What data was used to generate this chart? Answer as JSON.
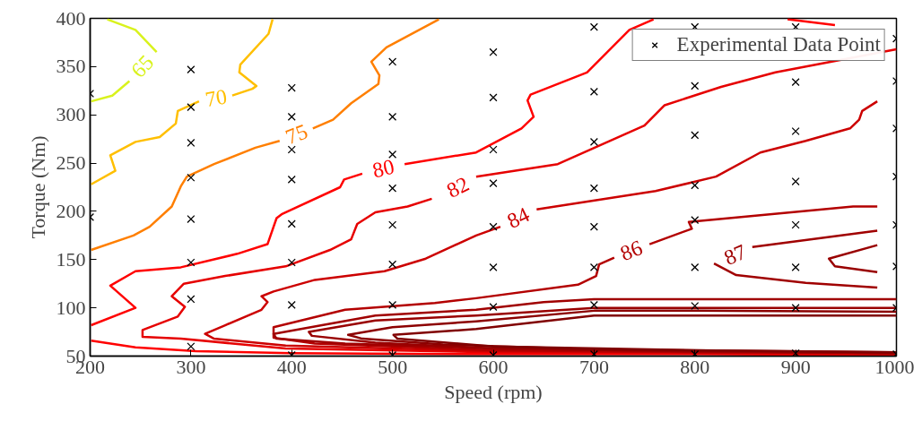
{
  "chart_data": {
    "type": "line",
    "xlabel": "Speed (rpm)",
    "ylabel": "Torque (Nm)",
    "xlim": [
      200,
      1000
    ],
    "ylim": [
      50,
      400
    ],
    "xticks": [
      200,
      300,
      400,
      500,
      600,
      700,
      800,
      900,
      1000
    ],
    "yticks": [
      50,
      100,
      150,
      200,
      250,
      300,
      350,
      400
    ],
    "grid": false,
    "legend": "top right",
    "series": [
      {
        "name": "65",
        "color": "#d9f21d",
        "x": [
          217,
          245,
          266,
          252,
          239,
          222,
          201
        ],
        "values": [
          399,
          388,
          365,
          null,
          335,
          320,
          314
        ]
      },
      {
        "name": "70",
        "color": "#ffbf00",
        "x": [
          381,
          377,
          349,
          348,
          365,
          361,
          341,
          325,
          308,
          287,
          285,
          269,
          245,
          220,
          225,
          201
        ],
        "values": [
          399,
          384,
          352,
          344,
          330,
          327,
          320,
          null,
          314,
          304,
          291,
          277,
          272,
          258,
          242,
          228
        ]
      },
      {
        "name": "75",
        "color": "#ff7f00",
        "x": [
          546,
          494,
          479,
          487,
          486,
          459,
          441,
          421,
          405,
          388,
          364,
          323,
          296,
          290,
          281,
          259,
          243,
          201
        ],
        "values": [
          399,
          370,
          355,
          341,
          332,
          312,
          295,
          286,
          null,
          273,
          266,
          249,
          236,
          226,
          205,
          184,
          175,
          160
        ]
      },
      {
        "name": "80",
        "color": "#ff0000",
        "x": [
          759,
          735,
          693,
          637,
          634,
          640,
          628,
          583,
          512,
          491,
          470,
          452,
          448,
          390,
          385,
          382,
          376,
          346,
          290,
          245,
          220,
          245,
          201
        ],
        "values": [
          399,
          388,
          344,
          321,
          315,
          298,
          286,
          261,
          249,
          null,
          239,
          233,
          225,
          197,
          193,
          184,
          166,
          156,
          142,
          138,
          123,
          100,
          82
        ]
      },
      {
        "color": "#ff0000",
        "x": [
          201,
          245,
          305,
          400,
          600,
          800,
          1000
        ],
        "values": [
          66,
          59,
          55,
          53,
          52,
          52,
          51
        ]
      },
      {
        "color": "#ff0000",
        "x": [
          892,
          939
        ],
        "values": [
          399,
          393
        ]
      },
      {
        "name": "82",
        "color": "#e60000",
        "x": [
          1000,
          880,
          826,
          770,
          750,
          664,
          583,
          565,
          539,
          515,
          483,
          465,
          459,
          438,
          394,
          334,
          293,
          281,
          294,
          287,
          252,
          252,
          290,
          394,
          600,
          800,
          1000
        ],
        "values": [
          368,
          344,
          329,
          310,
          289,
          249,
          236,
          null,
          213,
          205,
          199,
          187,
          171,
          160,
          143,
          133,
          125,
          112,
          101,
          91,
          77,
          70,
          68,
          58,
          54,
          53,
          52
        ]
      },
      {
        "name": "84",
        "color": "#cc0000",
        "x": [
          981,
          966,
          963,
          954,
          910,
          865,
          821,
          761,
          643,
          625,
          607,
          583,
          533,
          492,
          423,
          382,
          370,
          376,
          370,
          334,
          314,
          323,
          394,
          600,
          800,
          1000
        ],
        "values": [
          314,
          304,
          295,
          286,
          273,
          261,
          236,
          221,
          202,
          null,
          184,
          175,
          151,
          138,
          129,
          117,
          112,
          106,
          98,
          82,
          73,
          68,
          61,
          55,
          54,
          53
        ]
      },
      {
        "name": "86",
        "color": "#b30000",
        "x": [
          981,
          957,
          794,
          797,
          755,
          737,
          720,
          705,
          702,
          684,
          583,
          542,
          453,
          382,
          382,
          423,
          600,
          800,
          1000
        ],
        "values": [
          205,
          205,
          189,
          182,
          166,
          null,
          152,
          145,
          133,
          124,
          110,
          105,
          98,
          80,
          69,
          63,
          56,
          54,
          53
        ]
      },
      {
        "name": "87",
        "color": "#a00000",
        "x": [
          981,
          857,
          840,
          819,
          841,
          910,
          981
        ],
        "values": [
          180,
          163,
          null,
          146,
          134,
          126,
          121
        ]
      },
      {
        "color": "#990000",
        "x": [
          981,
          933,
          939,
          981
        ],
        "values": [
          165,
          151,
          143,
          137
        ]
      },
      {
        "color": "#a00000",
        "x": [
          1000,
          800,
          700,
          650,
          583,
          483,
          382,
          385,
          453,
          600,
          800,
          1000
        ],
        "values": [
          109,
          109,
          109,
          106,
          98,
          92,
          73,
          68,
          63,
          58,
          55,
          53
        ]
      },
      {
        "color": "#990000",
        "x": [
          1000,
          800,
          700,
          583,
          483,
          417,
          420,
          483,
          600,
          800,
          1000
        ],
        "values": [
          100,
          100,
          100,
          92,
          87,
          75,
          71,
          64,
          58,
          55,
          53
        ]
      },
      {
        "color": "#8c0000",
        "x": [
          1000,
          800,
          700,
          583,
          500,
          456,
          470,
          550,
          700,
          1000
        ],
        "values": [
          96,
          97,
          97,
          86,
          80,
          72,
          68,
          62,
          57,
          54
        ]
      },
      {
        "color": "#800000",
        "x": [
          1000,
          800,
          700,
          583,
          501,
          505,
          600,
          800,
          1000
        ],
        "values": [
          92,
          92,
          92,
          78,
          72,
          68,
          60,
          56,
          54
        ]
      },
      {
        "name": "Experimental Data Point",
        "color": "#000000",
        "type": "scatter",
        "marker": "cross",
        "x": [
          200,
          200,
          300,
          300,
          300,
          300,
          300,
          300,
          300,
          300,
          400,
          400,
          400,
          400,
          400,
          400,
          400,
          400,
          500,
          500,
          500,
          500,
          500,
          500,
          500,
          500,
          600,
          600,
          600,
          600,
          600,
          600,
          600,
          600,
          700,
          700,
          700,
          700,
          700,
          700,
          700,
          700,
          800,
          800,
          800,
          800,
          800,
          800,
          800,
          800,
          900,
          900,
          900,
          900,
          900,
          900,
          900,
          900,
          1000,
          1000,
          1000,
          1000,
          1000,
          1000,
          1000,
          1000
        ],
        "values": [
          322,
          194,
          347,
          308,
          271,
          235,
          192,
          147,
          109,
          60,
          328,
          298,
          264,
          233,
          187,
          147,
          103,
          51,
          355,
          298,
          259,
          224,
          186,
          145,
          103,
          51,
          365,
          318,
          264,
          229,
          184,
          142,
          101,
          51,
          391,
          324,
          272,
          224,
          184,
          142,
          103,
          52,
          391,
          330,
          279,
          227,
          191,
          142,
          102,
          52,
          391,
          334,
          283,
          231,
          186,
          142,
          100,
          53,
          379,
          335,
          286,
          236,
          186,
          143,
          100,
          52
        ]
      }
    ]
  }
}
